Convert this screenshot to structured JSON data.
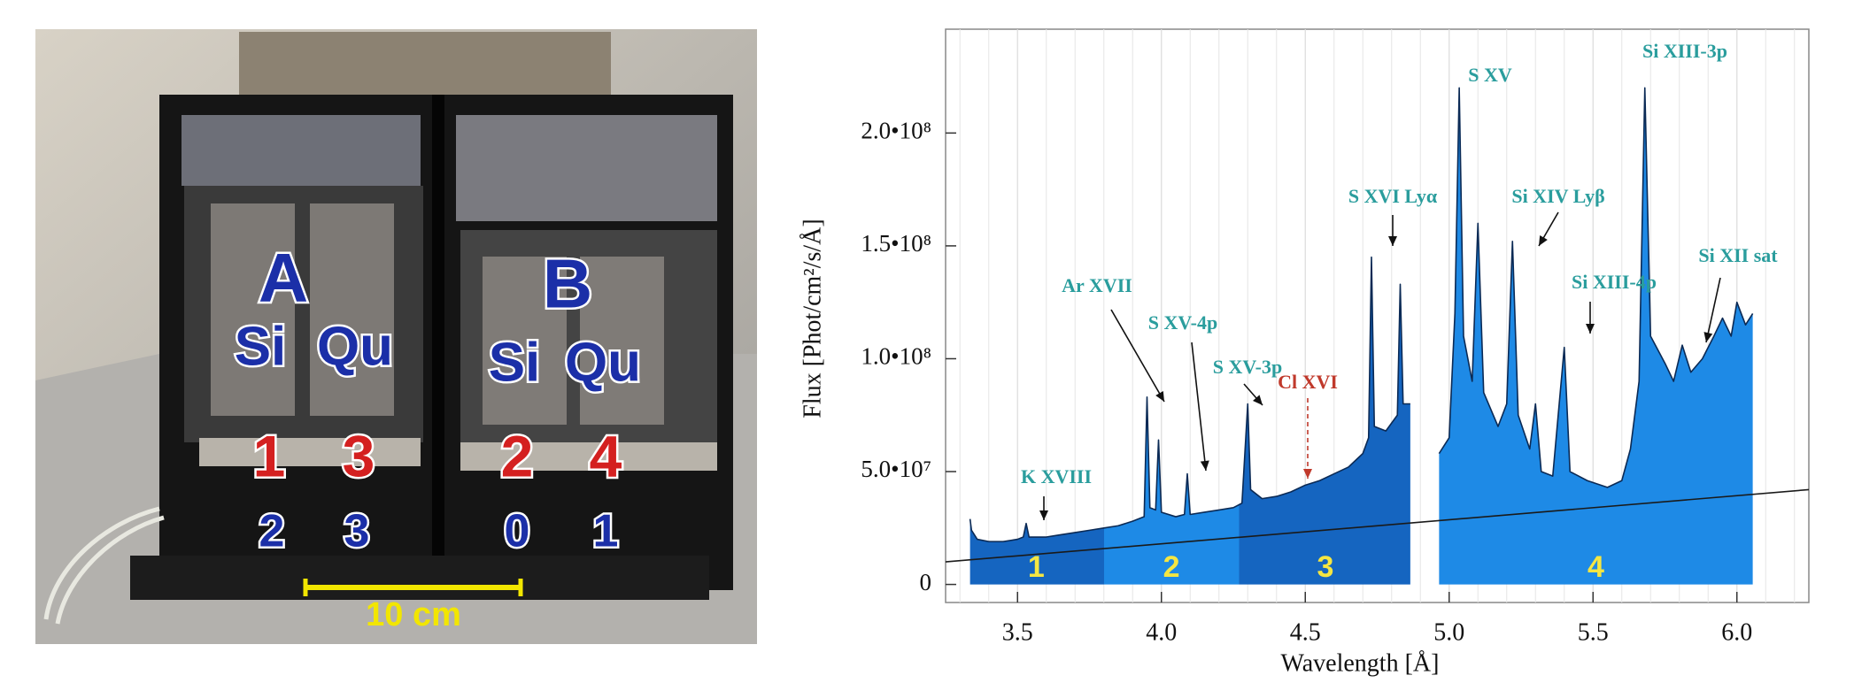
{
  "photo": {
    "labels": [
      "A",
      "Si",
      "Qu",
      "B",
      "Si",
      "Qu",
      "1",
      "3",
      "2",
      "4",
      "2",
      "3",
      "0",
      "1",
      "10 cm"
    ]
  },
  "chart_data": {
    "type": "area",
    "xlabel": "Wavelength [Å]",
    "ylabel": "Flux   [Phot/cm²/s/Å]",
    "xlim": [
      3.25,
      6.25
    ],
    "ylim": [
      -8000000.0,
      246000000.0
    ],
    "xticks": [
      3.5,
      {
        "value": 4,
        "label": "4.0"
      },
      4.5,
      {
        "value": 5,
        "label": "5.0"
      },
      5.5,
      {
        "value": 6,
        "label": "6.0"
      }
    ],
    "minor_xticks": [
      3.3,
      3.4,
      3.6,
      3.7,
      3.8,
      3.9,
      4.1,
      4.2,
      4.3,
      4.4,
      4.6,
      4.7,
      4.8,
      4.9,
      5.1,
      5.2,
      5.3,
      5.4,
      5.6,
      5.7,
      5.8,
      5.9,
      6.1,
      6.2
    ],
    "yticks": [
      0,
      {
        "value": 50000000.0,
        "label": "5.0•10⁷"
      },
      {
        "value": 100000000.0,
        "label": "1.0•10⁸"
      },
      {
        "value": 150000000.0,
        "label": "1.5•10⁸"
      },
      {
        "value": 200000000.0,
        "label": "2.0•10⁸"
      }
    ],
    "grid": true,
    "line_color": "#0b2a55",
    "x": [
      3.335,
      3.34,
      3.36,
      3.4,
      3.45,
      3.5,
      3.52,
      3.53,
      3.54,
      3.6,
      3.65,
      3.7,
      3.75,
      3.8,
      3.85,
      3.9,
      3.94,
      3.95,
      3.96,
      3.98,
      3.99,
      4.0,
      4.05,
      4.08,
      4.09,
      4.1,
      4.15,
      4.2,
      4.25,
      4.28,
      4.3,
      4.31,
      4.35,
      4.4,
      4.45,
      4.5,
      4.55,
      4.6,
      4.65,
      4.7,
      4.72,
      4.73,
      4.74,
      4.78,
      4.82,
      4.83,
      4.84,
      4.865,
      4.87,
      4.965,
      5.0,
      5.02,
      5.035,
      5.05,
      5.08,
      5.1,
      5.12,
      5.17,
      5.2,
      5.22,
      5.24,
      5.28,
      5.3,
      5.32,
      5.36,
      5.4,
      5.42,
      5.48,
      5.55,
      5.6,
      5.63,
      5.66,
      5.68,
      5.7,
      5.75,
      5.78,
      5.81,
      5.84,
      5.88,
      5.92,
      5.95,
      5.98,
      6.0,
      6.03,
      6.055
    ],
    "values": [
      29000000.0,
      24000000.0,
      20000000.0,
      19000000.0,
      19000000.0,
      20000000.0,
      21000000.0,
      27000000.0,
      21000000.0,
      21000000.0,
      22000000.0,
      23000000.0,
      24000000.0,
      25000000.0,
      26000000.0,
      28000000.0,
      30000000.0,
      83000000.0,
      34000000.0,
      33000000.0,
      64000000.0,
      32000000.0,
      30000000.0,
      31000000.0,
      49000000.0,
      31000000.0,
      32000000.0,
      33000000.0,
      34000000.0,
      36000000.0,
      80000000.0,
      42000000.0,
      38000000.0,
      39000000.0,
      41000000.0,
      44000000.0,
      46000000.0,
      49000000.0,
      52000000.0,
      58000000.0,
      65000000.0,
      145000000.0,
      70000000.0,
      68000000.0,
      75000000.0,
      133000000.0,
      80000000.0,
      80000000.0,
      null,
      58000000.0,
      65000000.0,
      120000000.0,
      220000000.0,
      110000000.0,
      90000000.0,
      160000000.0,
      85000000.0,
      70000000.0,
      80000000.0,
      152000000.0,
      75000000.0,
      60000000.0,
      80000000.0,
      50000000.0,
      48000000.0,
      105000000.0,
      50000000.0,
      46000000.0,
      43000000.0,
      46000000.0,
      60000000.0,
      90000000.0,
      220000000.0,
      110000000.0,
      98000000.0,
      90000000.0,
      106000000.0,
      94000000.0,
      100000000.0,
      110000000.0,
      118000000.0,
      110000000.0,
      125000000.0,
      115000000.0,
      120000000.0
    ],
    "regions": [
      {
        "name": "1",
        "from": 3.33,
        "to": 3.8,
        "color": "#1565c0"
      },
      {
        "name": "2",
        "from": 3.8,
        "to": 4.27,
        "color": "#1e8ae6"
      },
      {
        "name": "3",
        "from": 4.27,
        "to": 4.87,
        "color": "#1565c0"
      },
      {
        "name": "4",
        "from": 4.96,
        "to": 6.06,
        "color": "#1e8ae6"
      }
    ],
    "continuum": {
      "x": [
        3.25,
        6.25
      ],
      "values": [
        10000000.0,
        42000000.0
      ],
      "color": "#1a1a1a"
    },
    "annotations": [
      {
        "text": "K XVIII",
        "color": "#2a9d9d"
      },
      {
        "text": "Ar XVII",
        "color": "#2a9d9d"
      },
      {
        "text": "S XV-4p",
        "color": "#2a9d9d"
      },
      {
        "text": "S XV-3p",
        "color": "#2a9d9d"
      },
      {
        "text": "Cl XVI",
        "color": "#c0392b"
      },
      {
        "text": "S XVI Lyα",
        "color": "#2a9d9d"
      },
      {
        "text": "S XV",
        "color": "#2a9d9d"
      },
      {
        "text": "Si XIV Lyβ",
        "color": "#2a9d9d"
      },
      {
        "text": "Si XIII-4p",
        "color": "#2a9d9d"
      },
      {
        "text": "Si XIII-3p",
        "color": "#2a9d9d"
      },
      {
        "text": "Si XII sat",
        "color": "#2a9d9d"
      }
    ]
  }
}
